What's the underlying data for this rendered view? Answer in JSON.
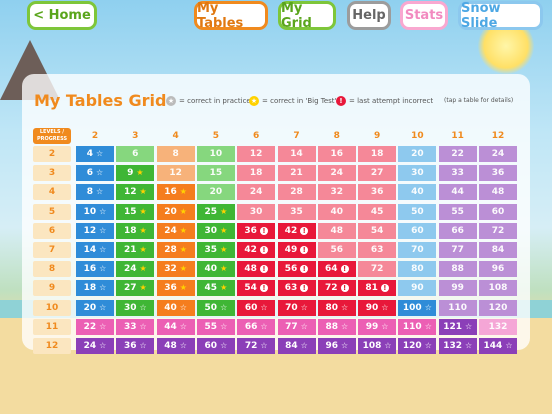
{
  "nav": {
    "home": "< Home",
    "my_tables": "My Tables",
    "my_grid": "My Grid",
    "help": "Help",
    "stats": "Stats",
    "snow_slide": "Snow Slide"
  },
  "title": "My Tables Grid",
  "legend": {
    "practice": "= correct in practice",
    "big_test": "= correct in 'Big Test'",
    "incorrect": "= last attempt incorrect"
  },
  "hint": "(tap a table for details)",
  "corner_label": "LEVELS / PROGRESS",
  "columns": [
    "2",
    "3",
    "4",
    "5",
    "6",
    "7",
    "8",
    "9",
    "10",
    "11",
    "12"
  ],
  "rows": [
    "2",
    "3",
    "4",
    "5",
    "6",
    "7",
    "8",
    "9",
    "10",
    "11",
    "12"
  ],
  "colors": {
    "col": [
      "#2f8cd8",
      "#3fb635",
      "#f57d1e",
      "#3fb635",
      "#e8183a",
      "#e8183a",
      "#e8183a",
      "#e8183a",
      "#2f8cd8",
      "#8b3fb8",
      "#8b3fb8"
    ],
    "pale": [
      "#7fbde9",
      "#86d77e",
      "#f7b27a",
      "#86d77e",
      "#f58898",
      "#f58898",
      "#f58898",
      "#f58898",
      "#8ec9ee",
      "#bb8fd6",
      "#bb8fd6"
    ],
    "row11": "#ec5fb4",
    "row11pale": "#f5a6d6",
    "row12": "#8b3fb8",
    "row12pale": "#bb8fd6"
  },
  "grid": [
    [
      "4|w",
      "6",
      "8",
      "10",
      "12",
      "14",
      "16",
      "18",
      "20",
      "22",
      "24"
    ],
    [
      "6|w",
      "9|g",
      "12",
      "15",
      "18",
      "21",
      "24",
      "27",
      "30",
      "33",
      "36"
    ],
    [
      "8|w",
      "12|g",
      "16|g",
      "20",
      "24",
      "28",
      "32",
      "36",
      "40",
      "44",
      "48"
    ],
    [
      "10|w",
      "15|g",
      "20|g",
      "25|g",
      "30",
      "35",
      "40",
      "45",
      "50",
      "55",
      "60"
    ],
    [
      "12|w",
      "18|g",
      "24|g",
      "30|g",
      "36|a",
      "42|a",
      "48",
      "54",
      "60",
      "66",
      "72"
    ],
    [
      "14|w",
      "21|g",
      "28|g",
      "35|g",
      "42|a",
      "49|a",
      "56",
      "63",
      "70",
      "77",
      "84"
    ],
    [
      "16|w",
      "24|g",
      "32|g",
      "40|g",
      "48|a",
      "56|a",
      "64|a",
      "72",
      "80",
      "88",
      "96"
    ],
    [
      "18|w",
      "27|g",
      "36|g",
      "45|g",
      "54|a",
      "63|a",
      "72|a",
      "81|a",
      "90",
      "99",
      "108"
    ],
    [
      "20|w",
      "30|w",
      "40|w",
      "50|w",
      "60|w",
      "70|w",
      "80|w",
      "90|w",
      "100|w",
      "110",
      "120"
    ],
    [
      "22|w",
      "33|w",
      "44|w",
      "55|w",
      "66|w",
      "77|w",
      "88|w",
      "99|w",
      "110|w",
      "121|w",
      "132"
    ],
    [
      "24|w",
      "36|w",
      "48|w",
      "60|w",
      "72|w",
      "84|w",
      "96|w",
      "108|w",
      "120|w",
      "132|w",
      "144|w"
    ]
  ]
}
